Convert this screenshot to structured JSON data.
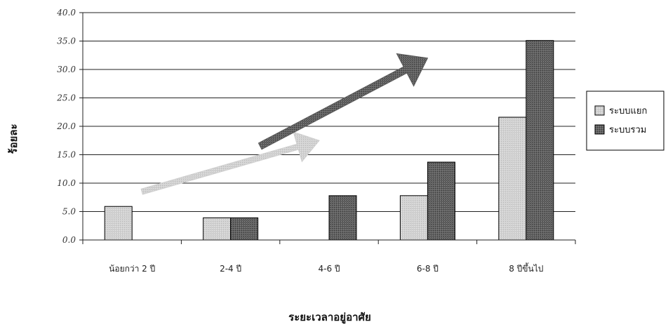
{
  "chart_data": {
    "type": "bar",
    "xlabel": "ระยะเวลาอยู่อาศัย",
    "ylabel": "ร้อยละ",
    "ylim": [
      0,
      40
    ],
    "yticks": [
      "0.0",
      "5.0",
      "10.0",
      "15.0",
      "20.0",
      "25.0",
      "30.0",
      "35.0",
      "40.0"
    ],
    "categories": [
      "น้อยกว่า 2 ปี",
      "2-4 ปี",
      "4-6 ปี",
      "6-8 ปี",
      "8 ปีขึ้นไป"
    ],
    "series": [
      {
        "name": "ระบบแยก",
        "values": [
          5.9,
          3.9,
          0,
          7.8,
          21.6
        ],
        "color": "#d4d4d4"
      },
      {
        "name": "ระบบรวม",
        "values": [
          0,
          3.9,
          7.8,
          13.7,
          35.1
        ],
        "color": "#5a5a5a"
      }
    ],
    "grid": true,
    "legend_position": "right",
    "annotations": [
      {
        "type": "arrow",
        "color": "#d0d0d0",
        "from": [
          0.6,
          8.5
        ],
        "to": [
          2.4,
          17.5
        ]
      },
      {
        "type": "arrow",
        "color": "#5a5a5a",
        "from": [
          1.8,
          16.5
        ],
        "to": [
          3.5,
          32.0
        ]
      }
    ]
  }
}
